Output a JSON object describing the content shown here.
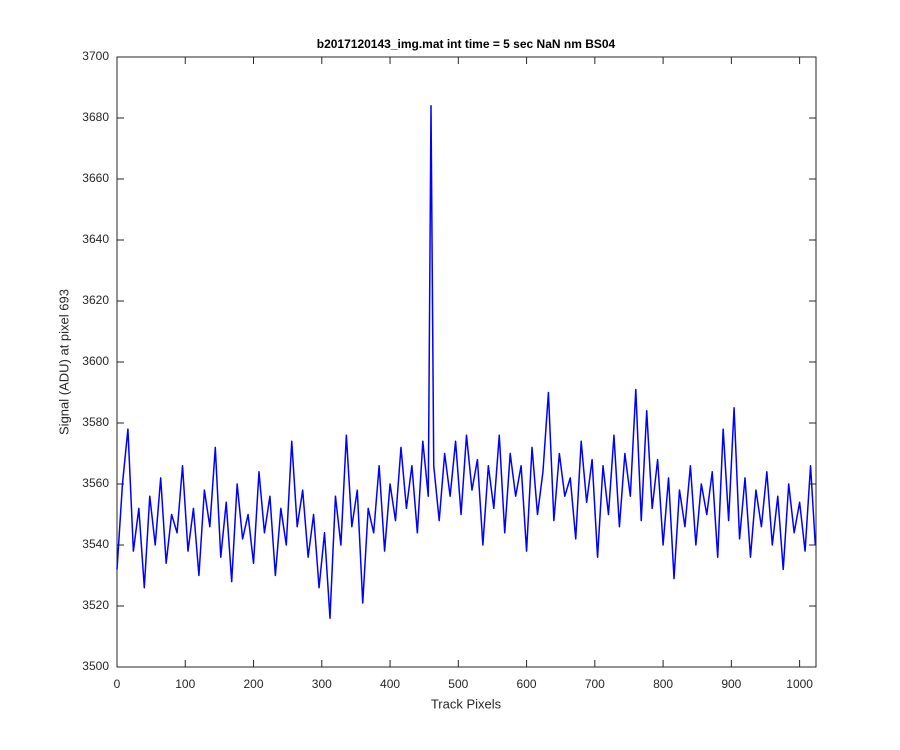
{
  "chart_data": {
    "type": "line",
    "title": "b2017120143_img.mat int time = 5 sec  NaN nm BS04",
    "xlabel": "Track Pixels",
    "ylabel": "Signal (ADU) at pixel 693",
    "color": "#0000ff",
    "xlim": [
      0,
      1024
    ],
    "xticks": [
      0,
      100,
      200,
      300,
      400,
      500,
      600,
      700,
      800,
      900,
      1000
    ],
    "ylim": [
      3500,
      3700
    ],
    "yticks": [
      3500,
      3520,
      3540,
      3560,
      3580,
      3600,
      3620,
      3640,
      3660,
      3680,
      3700
    ],
    "x": [
      0,
      8,
      16,
      24,
      32,
      40,
      48,
      56,
      64,
      72,
      80,
      88,
      96,
      104,
      112,
      120,
      128,
      136,
      144,
      152,
      160,
      168,
      176,
      184,
      192,
      200,
      208,
      216,
      224,
      232,
      240,
      248,
      256,
      264,
      272,
      280,
      288,
      296,
      304,
      312,
      320,
      328,
      336,
      344,
      352,
      360,
      368,
      376,
      384,
      392,
      400,
      408,
      416,
      424,
      432,
      440,
      448,
      456,
      460,
      464,
      472,
      480,
      488,
      496,
      504,
      512,
      520,
      528,
      536,
      544,
      552,
      560,
      568,
      576,
      584,
      592,
      600,
      608,
      616,
      624,
      632,
      640,
      648,
      656,
      664,
      672,
      680,
      688,
      696,
      704,
      712,
      720,
      728,
      736,
      744,
      752,
      760,
      768,
      776,
      784,
      792,
      800,
      808,
      816,
      824,
      832,
      840,
      848,
      856,
      864,
      872,
      880,
      888,
      896,
      904,
      912,
      920,
      928,
      936,
      944,
      952,
      960,
      968,
      976,
      984,
      992,
      1000,
      1008,
      1016,
      1023
    ],
    "values": [
      3532,
      3560,
      3578,
      3538,
      3552,
      3526,
      3556,
      3540,
      3562,
      3534,
      3550,
      3544,
      3566,
      3538,
      3552,
      3530,
      3558,
      3546,
      3572,
      3536,
      3554,
      3528,
      3560,
      3542,
      3550,
      3534,
      3564,
      3544,
      3556,
      3530,
      3552,
      3540,
      3574,
      3546,
      3558,
      3536,
      3550,
      3526,
      3544,
      3516,
      3556,
      3540,
      3576,
      3546,
      3558,
      3521,
      3552,
      3544,
      3566,
      3538,
      3560,
      3548,
      3572,
      3552,
      3566,
      3544,
      3574,
      3556,
      3684,
      3566,
      3548,
      3570,
      3556,
      3574,
      3550,
      3576,
      3558,
      3568,
      3540,
      3566,
      3552,
      3576,
      3544,
      3570,
      3556,
      3566,
      3538,
      3572,
      3550,
      3564,
      3590,
      3548,
      3570,
      3556,
      3562,
      3542,
      3574,
      3554,
      3568,
      3536,
      3566,
      3550,
      3576,
      3546,
      3570,
      3556,
      3591,
      3548,
      3584,
      3552,
      3568,
      3540,
      3562,
      3529,
      3558,
      3546,
      3566,
      3540,
      3560,
      3550,
      3564,
      3536,
      3578,
      3548,
      3585,
      3542,
      3562,
      3536,
      3558,
      3546,
      3564,
      3540,
      3556,
      3532,
      3560,
      3544,
      3554,
      3538,
      3566,
      3540
    ]
  }
}
